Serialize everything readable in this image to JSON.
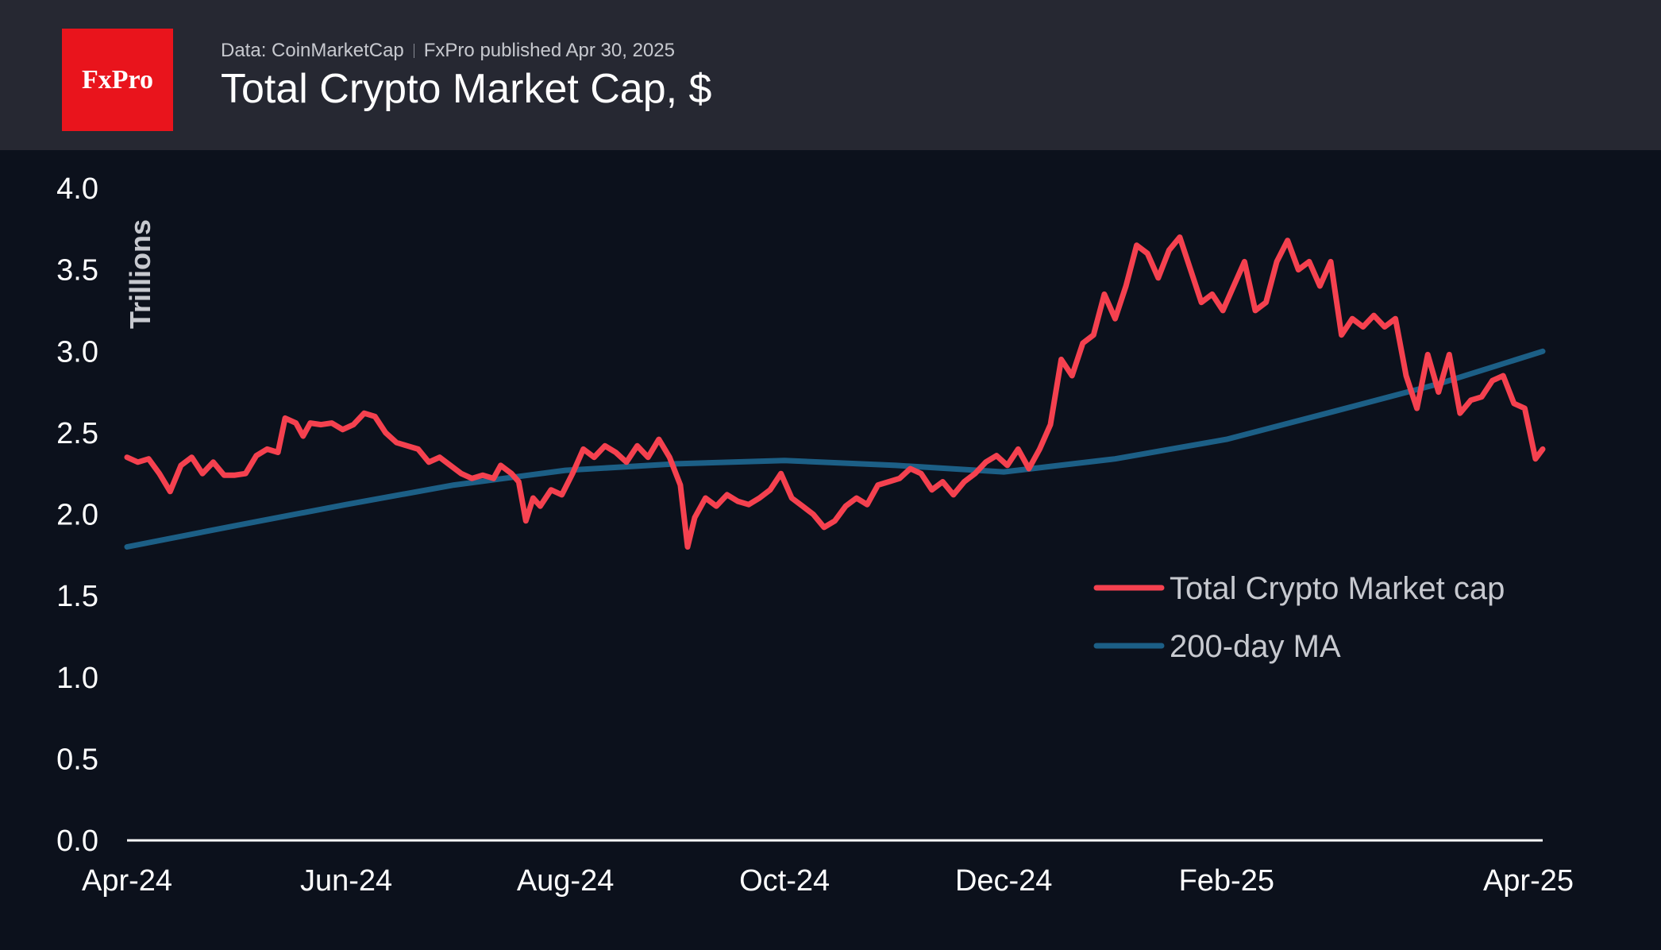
{
  "header": {
    "logo_text": "FxPro",
    "source": "Data: CoinMarketCap",
    "published": "FxPro published Apr 30, 2025",
    "title": "Total Crypto Market Cap, $"
  },
  "chart_data": {
    "type": "line",
    "ylabel": "Trillions",
    "xlabel": "",
    "ylim": [
      0.0,
      4.0
    ],
    "xlim": [
      "2024-04-01",
      "2025-04-30"
    ],
    "yticks": [
      "0.0",
      "0.5",
      "1.0",
      "1.5",
      "2.0",
      "2.5",
      "3.0",
      "3.5",
      "4.0"
    ],
    "xticks": [
      {
        "label": "Apr-24",
        "date": "2024-04-01"
      },
      {
        "label": "Jun-24",
        "date": "2024-06-01"
      },
      {
        "label": "Aug-24",
        "date": "2024-08-01"
      },
      {
        "label": "Oct-24",
        "date": "2024-10-01"
      },
      {
        "label": "Dec-24",
        "date": "2024-12-01"
      },
      {
        "label": "Feb-25",
        "date": "2025-02-01"
      },
      {
        "label": "Apr-25",
        "date": "2025-04-01"
      }
    ],
    "grid": false,
    "legend": "right",
    "series": [
      {
        "name": "Total Crypto Market cap",
        "color": "#f5414f",
        "points": [
          [
            "2024-04-01",
            2.35
          ],
          [
            "2024-04-04",
            2.32
          ],
          [
            "2024-04-07",
            2.34
          ],
          [
            "2024-04-10",
            2.25
          ],
          [
            "2024-04-13",
            2.14
          ],
          [
            "2024-04-16",
            2.3
          ],
          [
            "2024-04-19",
            2.35
          ],
          [
            "2024-04-22",
            2.25
          ],
          [
            "2024-04-25",
            2.32
          ],
          [
            "2024-04-28",
            2.24
          ],
          [
            "2024-05-01",
            2.24
          ],
          [
            "2024-05-04",
            2.25
          ],
          [
            "2024-05-07",
            2.36
          ],
          [
            "2024-05-10",
            2.4
          ],
          [
            "2024-05-13",
            2.38
          ],
          [
            "2024-05-15",
            2.59
          ],
          [
            "2024-05-18",
            2.56
          ],
          [
            "2024-05-20",
            2.48
          ],
          [
            "2024-05-22",
            2.56
          ],
          [
            "2024-05-25",
            2.55
          ],
          [
            "2024-05-28",
            2.56
          ],
          [
            "2024-05-31",
            2.52
          ],
          [
            "2024-06-03",
            2.55
          ],
          [
            "2024-06-06",
            2.62
          ],
          [
            "2024-06-09",
            2.6
          ],
          [
            "2024-06-12",
            2.5
          ],
          [
            "2024-06-15",
            2.44
          ],
          [
            "2024-06-18",
            2.42
          ],
          [
            "2024-06-21",
            2.4
          ],
          [
            "2024-06-24",
            2.32
          ],
          [
            "2024-06-27",
            2.35
          ],
          [
            "2024-06-30",
            2.3
          ],
          [
            "2024-07-03",
            2.25
          ],
          [
            "2024-07-06",
            2.22
          ],
          [
            "2024-07-09",
            2.24
          ],
          [
            "2024-07-12",
            2.22
          ],
          [
            "2024-07-14",
            2.3
          ],
          [
            "2024-07-17",
            2.25
          ],
          [
            "2024-07-19",
            2.2
          ],
          [
            "2024-07-21",
            1.96
          ],
          [
            "2024-07-23",
            2.1
          ],
          [
            "2024-07-25",
            2.05
          ],
          [
            "2024-07-28",
            2.15
          ],
          [
            "2024-07-31",
            2.12
          ],
          [
            "2024-08-03",
            2.25
          ],
          [
            "2024-08-06",
            2.4
          ],
          [
            "2024-08-09",
            2.35
          ],
          [
            "2024-08-12",
            2.42
          ],
          [
            "2024-08-15",
            2.38
          ],
          [
            "2024-08-18",
            2.32
          ],
          [
            "2024-08-21",
            2.42
          ],
          [
            "2024-08-24",
            2.35
          ],
          [
            "2024-08-27",
            2.46
          ],
          [
            "2024-08-30",
            2.35
          ],
          [
            "2024-09-02",
            2.18
          ],
          [
            "2024-09-04",
            1.8
          ],
          [
            "2024-09-06",
            1.98
          ],
          [
            "2024-09-09",
            2.1
          ],
          [
            "2024-09-12",
            2.05
          ],
          [
            "2024-09-15",
            2.12
          ],
          [
            "2024-09-18",
            2.08
          ],
          [
            "2024-09-21",
            2.06
          ],
          [
            "2024-09-24",
            2.1
          ],
          [
            "2024-09-27",
            2.15
          ],
          [
            "2024-09-30",
            2.25
          ],
          [
            "2024-10-03",
            2.1
          ],
          [
            "2024-10-06",
            2.05
          ],
          [
            "2024-10-09",
            2.0
          ],
          [
            "2024-10-12",
            1.92
          ],
          [
            "2024-10-15",
            1.96
          ],
          [
            "2024-10-18",
            2.05
          ],
          [
            "2024-10-21",
            2.1
          ],
          [
            "2024-10-24",
            2.06
          ],
          [
            "2024-10-27",
            2.18
          ],
          [
            "2024-10-30",
            2.2
          ],
          [
            "2024-11-02",
            2.22
          ],
          [
            "2024-11-05",
            2.28
          ],
          [
            "2024-11-08",
            2.25
          ],
          [
            "2024-11-11",
            2.15
          ],
          [
            "2024-11-14",
            2.2
          ],
          [
            "2024-11-17",
            2.12
          ],
          [
            "2024-11-20",
            2.2
          ],
          [
            "2024-11-23",
            2.25
          ],
          [
            "2024-11-26",
            2.32
          ],
          [
            "2024-11-29",
            2.36
          ],
          [
            "2024-12-02",
            2.3
          ],
          [
            "2024-12-05",
            2.4
          ],
          [
            "2024-12-08",
            2.28
          ],
          [
            "2024-12-11",
            2.4
          ],
          [
            "2024-12-14",
            2.55
          ],
          [
            "2024-12-17",
            2.95
          ],
          [
            "2024-12-20",
            2.85
          ],
          [
            "2024-12-23",
            3.05
          ],
          [
            "2024-12-26",
            3.1
          ],
          [
            "2024-12-29",
            3.35
          ],
          [
            "2025-01-01",
            3.2
          ],
          [
            "2025-01-04",
            3.4
          ],
          [
            "2025-01-07",
            3.65
          ],
          [
            "2025-01-10",
            3.6
          ],
          [
            "2025-01-13",
            3.45
          ],
          [
            "2025-01-16",
            3.62
          ],
          [
            "2025-01-19",
            3.7
          ],
          [
            "2025-01-22",
            3.5
          ],
          [
            "2025-01-25",
            3.3
          ],
          [
            "2025-01-28",
            3.35
          ],
          [
            "2025-01-31",
            3.25
          ],
          [
            "2025-02-03",
            3.4
          ],
          [
            "2025-02-06",
            3.55
          ],
          [
            "2025-02-09",
            3.25
          ],
          [
            "2025-02-12",
            3.3
          ],
          [
            "2025-02-15",
            3.55
          ],
          [
            "2025-02-18",
            3.68
          ],
          [
            "2025-02-21",
            3.5
          ],
          [
            "2025-02-24",
            3.55
          ],
          [
            "2025-02-27",
            3.4
          ],
          [
            "2025-03-02",
            3.55
          ],
          [
            "2025-03-05",
            3.1
          ],
          [
            "2025-03-08",
            3.2
          ],
          [
            "2025-03-11",
            3.15
          ],
          [
            "2025-03-14",
            3.22
          ],
          [
            "2025-03-17",
            3.15
          ],
          [
            "2025-03-20",
            3.2
          ],
          [
            "2025-03-23",
            2.85
          ],
          [
            "2025-03-26",
            2.65
          ],
          [
            "2025-03-29",
            2.98
          ],
          [
            "2025-04-01",
            2.75
          ],
          [
            "2025-04-04",
            2.98
          ],
          [
            "2025-04-07",
            2.62
          ],
          [
            "2025-04-10",
            2.7
          ],
          [
            "2025-04-13",
            2.72
          ],
          [
            "2025-04-16",
            2.82
          ],
          [
            "2025-04-19",
            2.85
          ],
          [
            "2025-04-22",
            2.68
          ],
          [
            "2025-04-25",
            2.65
          ],
          [
            "2025-04-28",
            2.34
          ],
          [
            "2025-04-30",
            2.4
          ]
        ]
      },
      {
        "name": "200-day MA",
        "color": "#1c5f86",
        "points": [
          [
            "2024-04-01",
            1.8
          ],
          [
            "2024-05-01",
            1.93
          ],
          [
            "2024-06-01",
            2.06
          ],
          [
            "2024-07-01",
            2.18
          ],
          [
            "2024-08-01",
            2.27
          ],
          [
            "2024-09-01",
            2.31
          ],
          [
            "2024-10-01",
            2.33
          ],
          [
            "2024-11-01",
            2.3
          ],
          [
            "2024-12-01",
            2.26
          ],
          [
            "2025-01-01",
            2.34
          ],
          [
            "2025-02-01",
            2.46
          ],
          [
            "2025-03-01",
            2.62
          ],
          [
            "2025-04-01",
            2.8
          ],
          [
            "2025-04-30",
            3.0
          ]
        ]
      }
    ]
  }
}
